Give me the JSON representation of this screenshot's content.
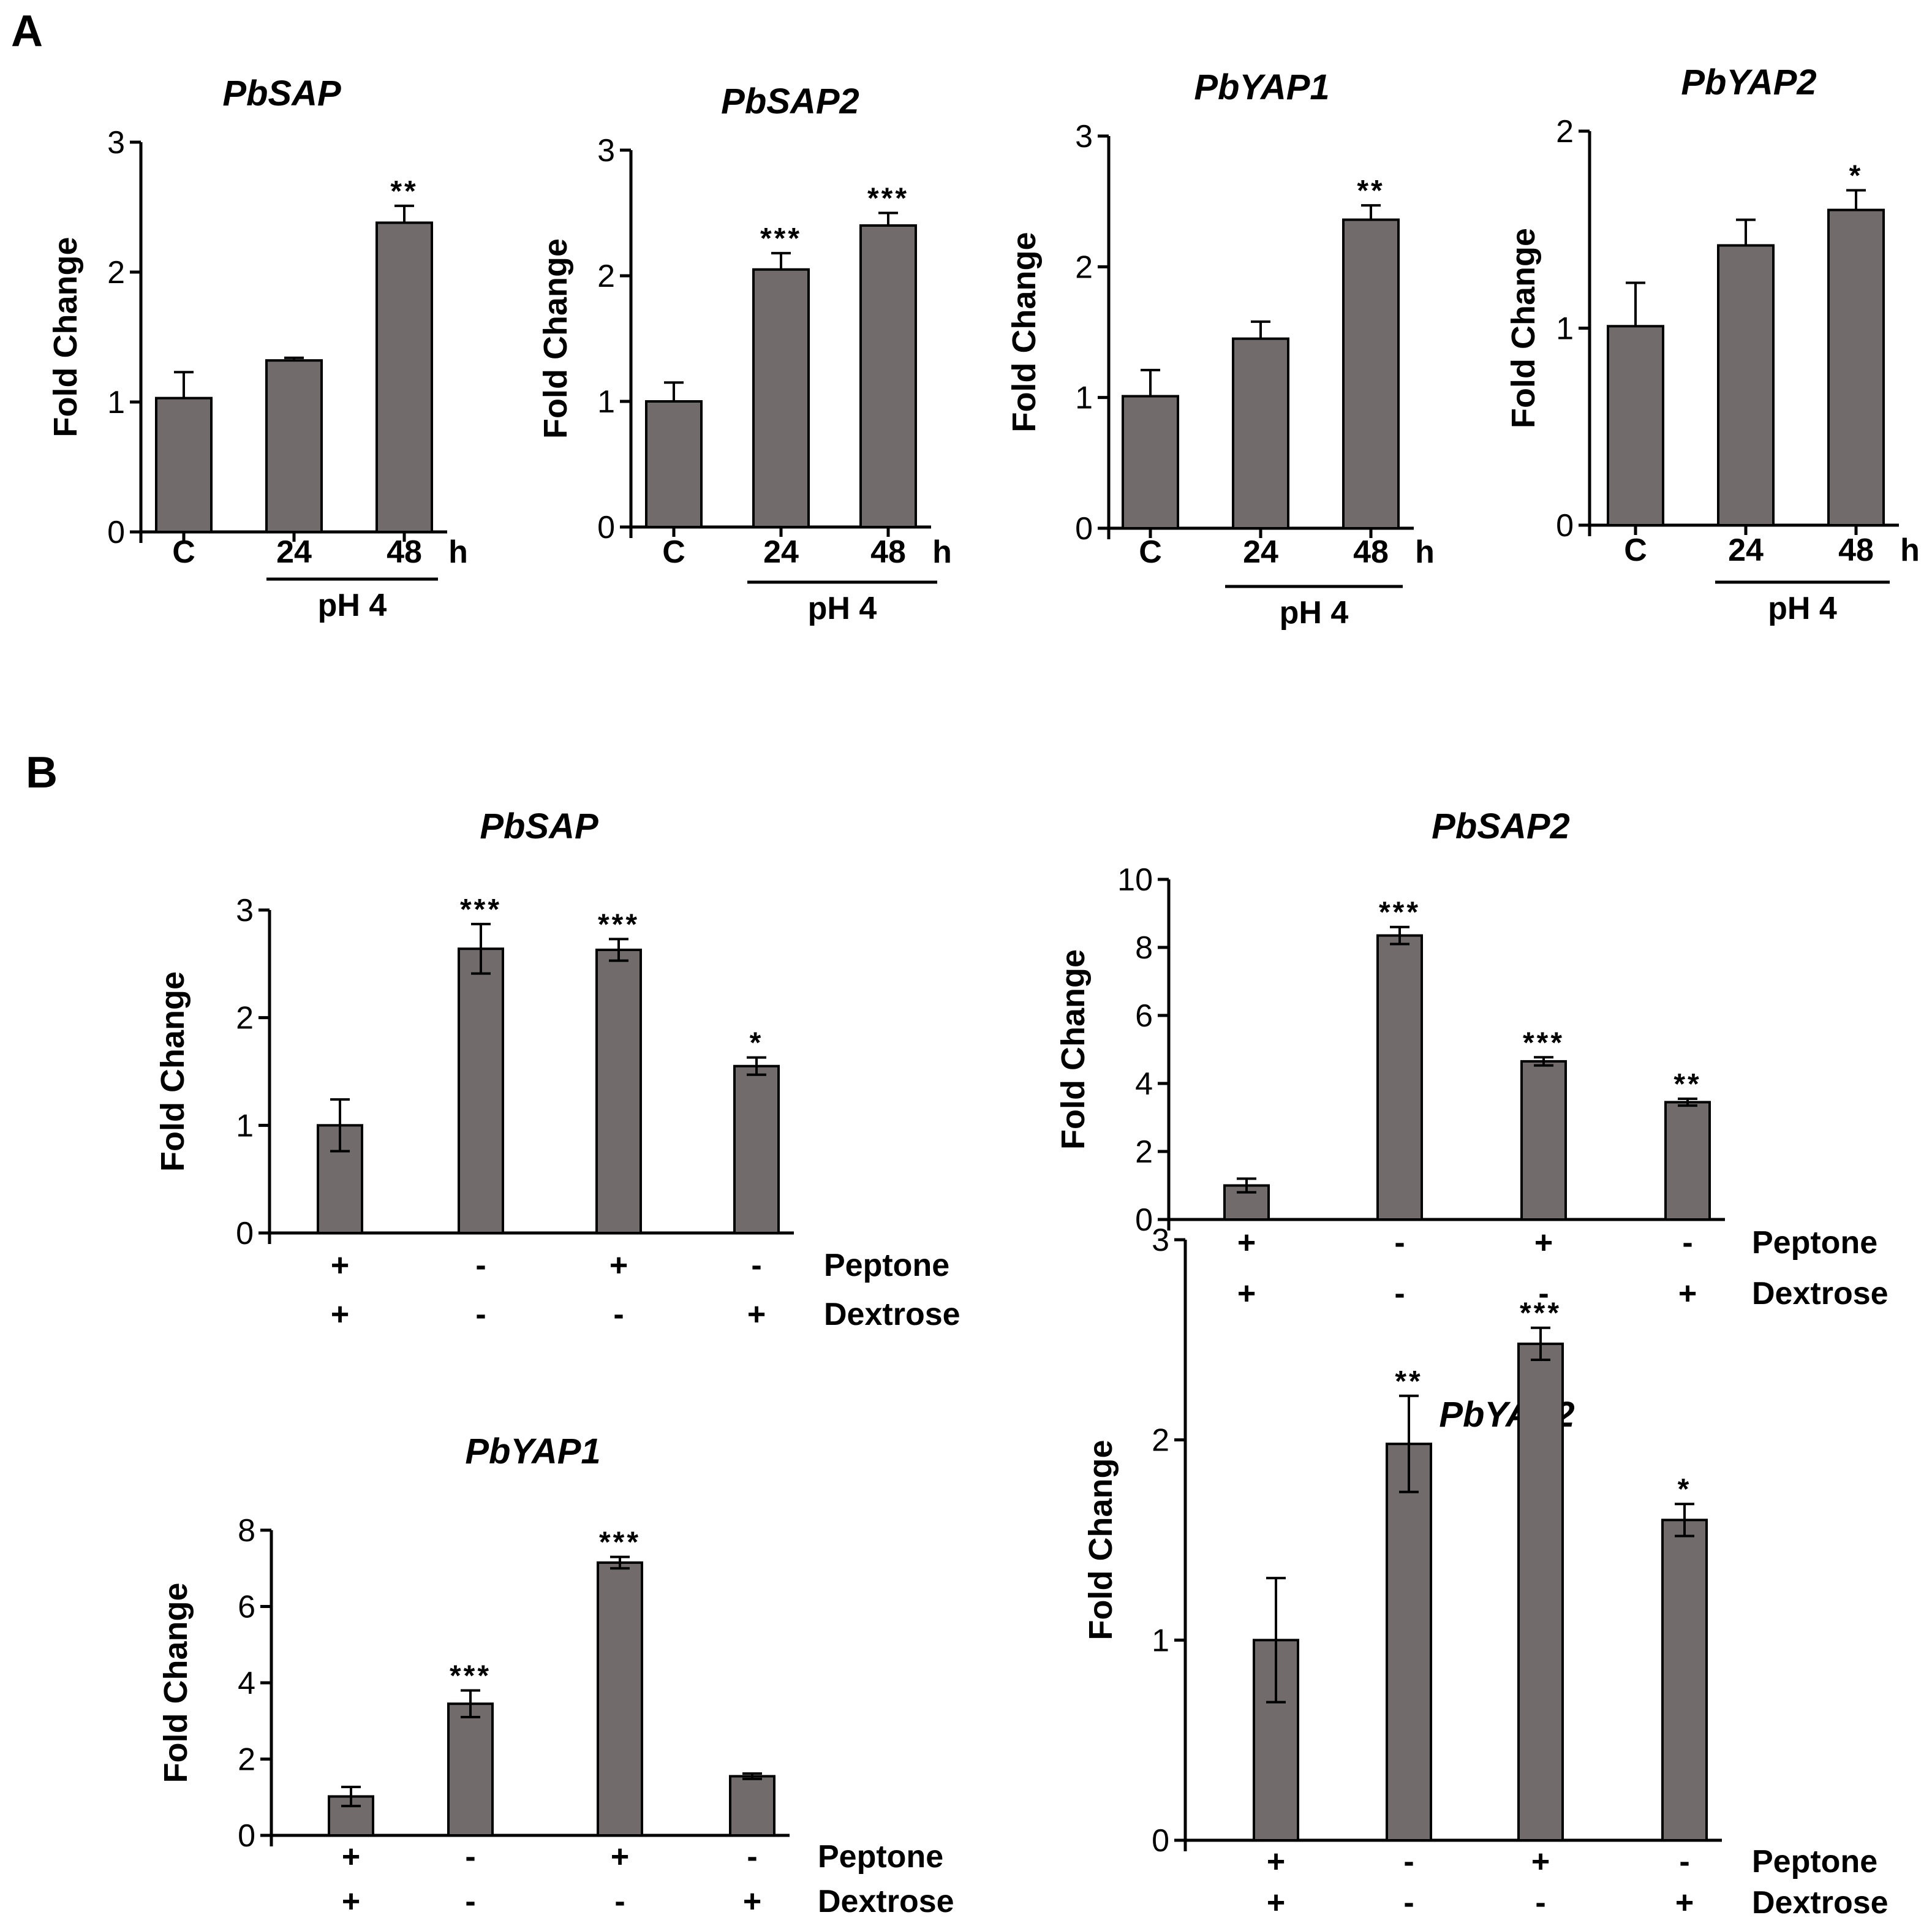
{
  "figure": {
    "bar_color": "#716b6b",
    "panel_a_label": "A",
    "panel_b_label": "B"
  },
  "chart_data": [
    {
      "type": "bar",
      "panel": "A",
      "title": "PbSAP",
      "ylabel": "Fold Change",
      "ylim": [
        0,
        3
      ],
      "yticks": [
        0,
        1,
        2,
        3
      ],
      "categories": [
        "C",
        "24",
        "48"
      ],
      "unit_label": "h",
      "group_label": "pH 4",
      "values": [
        1.03,
        1.32,
        2.38
      ],
      "errors": [
        0.2,
        0.02,
        0.13
      ],
      "significance": [
        "",
        "",
        "**"
      ]
    },
    {
      "type": "bar",
      "panel": "A",
      "title": "PbSAP2",
      "ylabel": "Fold Change",
      "ylim": [
        0,
        3
      ],
      "yticks": [
        0,
        1,
        2,
        3
      ],
      "categories": [
        "C",
        "24",
        "48"
      ],
      "unit_label": "h",
      "group_label": "pH 4",
      "values": [
        1.0,
        2.05,
        2.4
      ],
      "errors": [
        0.15,
        0.13,
        0.1
      ],
      "significance": [
        "",
        "***",
        "***"
      ]
    },
    {
      "type": "bar",
      "panel": "A",
      "title": "PbYAP1",
      "ylabel": "Fold Change",
      "ylim": [
        0,
        3
      ],
      "yticks": [
        0,
        1,
        2,
        3
      ],
      "categories": [
        "C",
        "24",
        "48"
      ],
      "unit_label": "h",
      "group_label": "pH 4",
      "values": [
        1.01,
        1.45,
        2.36
      ],
      "errors": [
        0.2,
        0.13,
        0.11
      ],
      "significance": [
        "",
        "",
        "**"
      ]
    },
    {
      "type": "bar",
      "panel": "A",
      "title": "PbYAP2",
      "ylabel": "Fold Change",
      "ylim": [
        0,
        2
      ],
      "yticks": [
        0,
        1,
        2
      ],
      "categories": [
        "C",
        "24",
        "48"
      ],
      "unit_label": "h",
      "group_label": "pH 4",
      "values": [
        1.01,
        1.42,
        1.6
      ],
      "errors": [
        0.22,
        0.13,
        0.1
      ],
      "significance": [
        "",
        "",
        "*"
      ]
    },
    {
      "type": "bar",
      "panel": "B",
      "title": "PbSAP",
      "ylabel": "Fold Change",
      "ylim": [
        0,
        3
      ],
      "yticks": [
        0,
        1,
        2,
        3
      ],
      "peptone": [
        "+",
        "-",
        "+",
        "-"
      ],
      "dextrose": [
        "+",
        "-",
        "-",
        "+"
      ],
      "row_labels": [
        "Peptone",
        "Dextrose"
      ],
      "values": [
        1.0,
        2.64,
        2.63,
        1.55
      ],
      "errors": [
        0.24,
        0.23,
        0.1,
        0.08
      ],
      "significance": [
        "",
        "***",
        "***",
        "*"
      ]
    },
    {
      "type": "bar",
      "panel": "B",
      "title": "PbSAP2",
      "ylabel": "Fold Change",
      "ylim": [
        0,
        10
      ],
      "yticks": [
        0,
        2,
        4,
        6,
        8,
        10
      ],
      "peptone": [
        "+",
        "-",
        "+",
        "-"
      ],
      "dextrose": [
        "+",
        "-",
        "-",
        "+"
      ],
      "row_labels": [
        "Peptone",
        "Dextrose"
      ],
      "values": [
        1.0,
        8.35,
        4.65,
        3.45
      ],
      "errors": [
        0.2,
        0.25,
        0.12,
        0.1
      ],
      "significance": [
        "",
        "***",
        "***",
        "**"
      ]
    },
    {
      "type": "bar",
      "panel": "B",
      "title": "PbYAP1",
      "ylabel": "Fold Change",
      "ylim": [
        0,
        8
      ],
      "yticks": [
        0,
        2,
        4,
        6,
        8
      ],
      "peptone": [
        "+",
        "-",
        "+",
        "-"
      ],
      "dextrose": [
        "+",
        "-",
        "-",
        "+"
      ],
      "row_labels": [
        "Peptone",
        "Dextrose"
      ],
      "values": [
        1.02,
        3.45,
        7.15,
        1.55
      ],
      "errors": [
        0.25,
        0.35,
        0.15,
        0.07
      ],
      "significance": [
        "",
        "***",
        "***",
        ""
      ]
    },
    {
      "type": "bar",
      "panel": "B",
      "title": "PbYAP2",
      "ylabel": "Fold Change",
      "ylim": [
        0,
        3
      ],
      "yticks": [
        0,
        1,
        2,
        3
      ],
      "peptone": [
        "+",
        "-",
        "+",
        "-"
      ],
      "dextrose": [
        "+",
        "-",
        "-",
        "+"
      ],
      "row_labels": [
        "Peptone",
        "Dextrose"
      ],
      "values": [
        1.0,
        1.98,
        2.48,
        1.6
      ],
      "errors": [
        0.31,
        0.24,
        0.08,
        0.08
      ],
      "significance": [
        "",
        "**",
        "***",
        "*"
      ]
    }
  ]
}
